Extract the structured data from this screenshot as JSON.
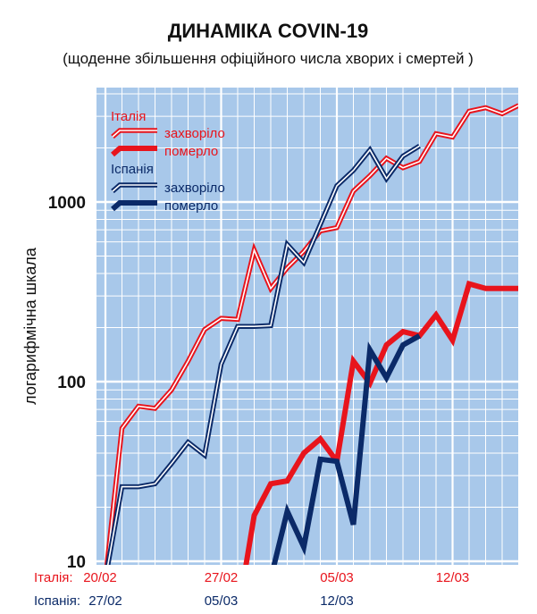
{
  "chart_data": {
    "type": "line",
    "title": "ДИНАМІКА COVIN-19",
    "subtitle": "(щоденне збільшення офіційного числа хворих і смертей )",
    "ylabel": "логарифмічна шкала",
    "yscale": "log",
    "ylim": [
      10,
      4000
    ],
    "yticks": [
      {
        "value": 10,
        "label": "10"
      },
      {
        "value": 100,
        "label": "100"
      },
      {
        "value": 1000,
        "label": "1000"
      }
    ],
    "xlim": [
      "2020-02-20",
      "2020-03-16"
    ],
    "x_axis_rows": [
      {
        "label": "Італія:",
        "color": "#e8141c",
        "ticks": [
          {
            "date": "2020-02-20",
            "text": "20/02"
          },
          {
            "date": "2020-02-27",
            "text": "27/02"
          },
          {
            "date": "2020-03-05",
            "text": "05/03"
          },
          {
            "date": "2020-03-12",
            "text": "12/03"
          }
        ]
      },
      {
        "label": "Іспанія:",
        "color": "#0b2a68",
        "ticks": [
          {
            "date": "2020-02-20",
            "text": "27/02"
          },
          {
            "date": "2020-02-27",
            "text": "05/03"
          },
          {
            "date": "2020-03-05",
            "text": "12/03"
          }
        ]
      }
    ],
    "grid": true,
    "legend_position": "top-left",
    "legend": [
      {
        "group": "Італія",
        "color": "#e8141c",
        "entries": [
          {
            "text": "захворіло",
            "style": "outline"
          },
          {
            "text": "померло",
            "style": "solid"
          }
        ]
      },
      {
        "group": "Іспанія",
        "color": "#0b2a68",
        "entries": [
          {
            "text": "захворіло",
            "style": "outline"
          },
          {
            "text": "померло",
            "style": "solid"
          }
        ]
      }
    ],
    "series": [
      {
        "country": "Італія",
        "metric": "захворіло",
        "color": "#e8141c",
        "style": "outline",
        "x": [
          "2020-02-20",
          "2020-02-21",
          "2020-02-22",
          "2020-02-23",
          "2020-02-24",
          "2020-02-25",
          "2020-02-26",
          "2020-02-27",
          "2020-02-28",
          "2020-02-29",
          "2020-03-01",
          "2020-03-02",
          "2020-03-03",
          "2020-03-04",
          "2020-03-05",
          "2020-03-06",
          "2020-03-07",
          "2020-03-08",
          "2020-03-09",
          "2020-03-10",
          "2020-03-11",
          "2020-03-12",
          "2020-03-13",
          "2020-03-14",
          "2020-03-15",
          "2020-03-16"
        ],
        "y": [
          8,
          55,
          73,
          71,
          90,
          130,
          195,
          225,
          222,
          540,
          330,
          430,
          530,
          690,
          720,
          1150,
          1400,
          1750,
          1550,
          1680,
          2400,
          2300,
          3200,
          3350,
          3100,
          3450
        ]
      },
      {
        "country": "Італія",
        "metric": "померло",
        "color": "#e8141c",
        "style": "solid",
        "x": [
          "2020-02-28",
          "2020-02-29",
          "2020-03-01",
          "2020-03-02",
          "2020-03-03",
          "2020-03-04",
          "2020-03-05",
          "2020-03-06",
          "2020-03-07",
          "2020-03-08",
          "2020-03-09",
          "2020-03-10",
          "2020-03-11",
          "2020-03-12",
          "2020-03-13",
          "2020-03-14",
          "2020-03-15",
          "2020-03-16"
        ],
        "y": [
          5,
          18,
          27,
          28,
          40,
          48,
          36,
          130,
          98,
          160,
          190,
          180,
          235,
          170,
          350,
          330,
          330,
          330
        ]
      },
      {
        "country": "Іспанія",
        "metric": "захворіло",
        "color": "#0b2a68",
        "style": "outline",
        "x": [
          "2020-02-20",
          "2020-02-21",
          "2020-02-22",
          "2020-02-23",
          "2020-02-24",
          "2020-02-25",
          "2020-02-26",
          "2020-02-27",
          "2020-02-28",
          "2020-02-29",
          "2020-03-01",
          "2020-03-02",
          "2020-03-03",
          "2020-03-04",
          "2020-03-05",
          "2020-03-06",
          "2020-03-07",
          "2020-03-08",
          "2020-03-09",
          "2020-03-10"
        ],
        "y": [
          8,
          26,
          26,
          27,
          35,
          46,
          39,
          125,
          203,
          203,
          205,
          580,
          460,
          750,
          1230,
          1500,
          1950,
          1350,
          1800,
          2050
        ]
      },
      {
        "country": "Іспанія",
        "metric": "померло",
        "color": "#0b2a68",
        "style": "solid",
        "x": [
          "2020-03-01",
          "2020-03-02",
          "2020-03-03",
          "2020-03-04",
          "2020-03-05",
          "2020-03-06",
          "2020-03-07",
          "2020-03-08",
          "2020-03-09",
          "2020-03-10"
        ],
        "y": [
          8,
          19,
          12,
          37,
          36,
          16,
          150,
          105,
          160,
          180
        ]
      }
    ]
  }
}
